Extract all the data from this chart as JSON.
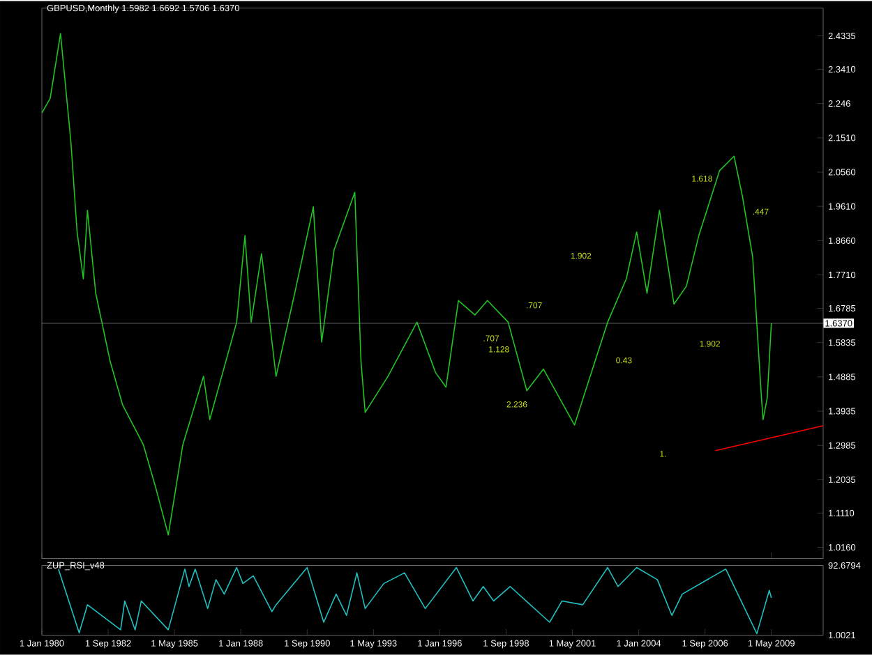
{
  "chart_data": [
    {
      "type": "line",
      "title": "GBPUSD,Monthly  1.5982 1.6692 1.5706 1.6370",
      "tick_labels": "y",
      "xlim": [
        "1980-01",
        "2011-06"
      ],
      "ylim": [
        0.985,
        2.5107
      ],
      "xticks": [
        {
          "value": "1980-01",
          "label": null
        },
        {
          "value": "2009-05",
          "label": null
        }
      ],
      "yticks": [
        2.4335,
        {
          "value": 2.341,
          "label": "2.3410"
        },
        2.246,
        {
          "value": 2.151,
          "label": "2.1510"
        },
        {
          "value": 2.056,
          "label": "2.0560"
        },
        {
          "value": 1.961,
          "label": "1.9610"
        },
        {
          "value": 1.866,
          "label": "1.8660"
        },
        {
          "value": 1.771,
          "label": "1.7710"
        },
        1.6785,
        1.5835,
        1.4885,
        1.3935,
        1.2985,
        1.2035,
        {
          "value": 1.111,
          "label": "1.1110"
        },
        {
          "value": 1.016,
          "label": "1.0160"
        }
      ],
      "series": [
        {
          "color": "#22c322",
          "x": [
            "1980-01",
            "1980-05",
            "1980-10",
            "1981-03",
            "1981-06",
            "1981-09",
            "1981-11",
            "1982-03",
            "1982-10",
            "1983-04",
            "1984-02",
            "1984-08",
            "1985-02",
            "1985-09",
            "1986-07",
            "1986-10",
            "1987-11",
            "1988-03",
            "1988-06",
            "1988-11",
            "1989-06",
            "1990-03",
            "1990-12",
            "1991-04",
            "1991-10",
            "1992-08",
            "1992-11",
            "1993-01",
            "1993-12",
            "1995-02",
            "1995-11",
            "1996-04",
            "1996-10",
            "1997-06",
            "1997-12",
            "1998-10",
            "1999-07",
            "2000-03",
            "2001-06",
            "2002-10",
            "2003-07",
            "2003-12",
            "2004-05",
            "2004-11",
            "2005-06",
            "2005-12",
            "2006-06",
            "2007-04",
            "2007-11",
            "2008-03",
            "2008-08",
            "2008-12",
            "2009-01",
            "2009-03",
            "2009-05"
          ],
          "values": [
            2.22,
            2.26,
            2.44,
            2.14,
            1.89,
            1.76,
            1.95,
            1.72,
            1.53,
            1.41,
            1.3,
            1.18,
            1.05,
            1.3,
            1.49,
            1.37,
            1.64,
            1.88,
            1.64,
            1.83,
            1.49,
            1.72,
            1.96,
            1.585,
            1.84,
            2.0,
            1.53,
            1.39,
            1.49,
            1.64,
            1.5,
            1.46,
            1.7,
            1.66,
            1.7,
            1.64,
            1.45,
            1.51,
            1.355,
            1.64,
            1.76,
            1.89,
            1.72,
            1.95,
            1.69,
            1.74,
            1.88,
            2.06,
            2.1,
            1.99,
            1.82,
            1.45,
            1.37,
            1.43,
            1.637
          ]
        },
        {
          "color": "#ff0000",
          "x": [
            "2007-02",
            "2011-06"
          ],
          "values": [
            1.284,
            1.353
          ]
        }
      ],
      "ref_lines": [
        {
          "axis": "y",
          "value": 1.637,
          "label": "1.6370",
          "color": "#808080"
        }
      ],
      "annotations": [
        "1.618",
        ".447",
        "1.902",
        "1.902",
        "0.43",
        "1.128",
        ".707",
        "2.236",
        "1.",
        ".707"
      ]
    },
    {
      "type": "line",
      "title": "ZUP_RSI_v48",
      "xlim": [
        "1980-01",
        "2011-06"
      ],
      "ylim": [
        1.0021,
        92.6794
      ],
      "xticks": [
        {
          "value": "1980-01",
          "label": "1 Jan 1980"
        },
        {
          "value": "1982-09",
          "label": "1 Sep 1982"
        },
        {
          "value": "1985-05",
          "label": "1 May 1985"
        },
        {
          "value": "1988-01",
          "label": "1 Jan 1988"
        },
        {
          "value": "1990-09",
          "label": "1 Sep 1990"
        },
        {
          "value": "1993-05",
          "label": "1 May 1993"
        },
        {
          "value": "1996-01",
          "label": "1 Jan 1996"
        },
        {
          "value": "1998-09",
          "label": "1 Sep 1998"
        },
        {
          "value": "2001-05",
          "label": "1 May 2001"
        },
        {
          "value": "2004-01",
          "label": "1 Jan 2004"
        },
        {
          "value": "2006-09",
          "label": "1 Sep 2006"
        },
        {
          "value": "2009-05",
          "label": "1 May 2009"
        }
      ],
      "yticks": [
        92.6794,
        1.0021
      ],
      "series": [
        {
          "color": "#20c0c0",
          "x": [
            "1980-09",
            "1981-07",
            "1981-11",
            "1983-03",
            "1983-05",
            "1983-10",
            "1984-01",
            "1985-02",
            "1985-10",
            "1985-12",
            "1986-03",
            "1986-09",
            "1987-01",
            "1987-05",
            "1987-11",
            "1988-02",
            "1988-07",
            "1989-04",
            "1989-06",
            "1990-09",
            "1991-05",
            "1991-11",
            "1992-04",
            "1992-09",
            "1993-01",
            "1993-10",
            "1994-08",
            "1995-06",
            "1996-09",
            "1997-05",
            "1997-10",
            "1998-03",
            "1998-11",
            "2000-06",
            "2000-12",
            "2001-10",
            "2002-10",
            "2003-03",
            "2003-12",
            "2004-10",
            "2005-05",
            "2005-10",
            "2007-07",
            "2008-10",
            "2009-04",
            "2009-05"
          ],
          "values": [
            88,
            4,
            41,
            8,
            46,
            8,
            46,
            8,
            88,
            65,
            88,
            36,
            74,
            55,
            90,
            69,
            79,
            32,
            41,
            90,
            18,
            55,
            27,
            83,
            36,
            69,
            83,
            36,
            90,
            46,
            65,
            46,
            65,
            18,
            46,
            41,
            90,
            65,
            90,
            74,
            27,
            55,
            88,
            3,
            60,
            50
          ]
        }
      ]
    }
  ]
}
